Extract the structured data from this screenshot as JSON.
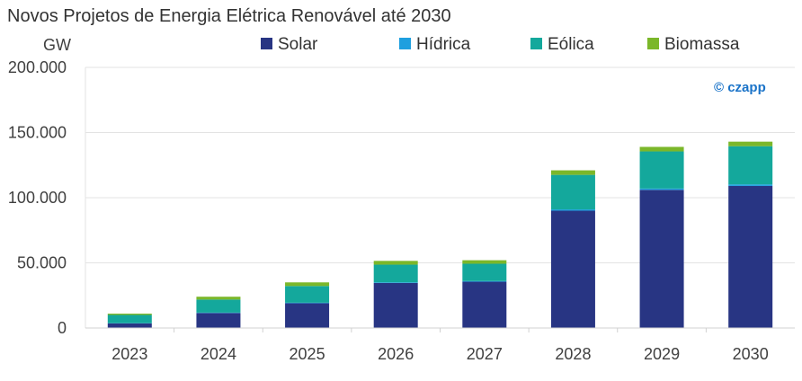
{
  "chart_data": {
    "type": "bar",
    "stacked": true,
    "title": "Novos Projetos de Energia Elétrica Renovável até 2030",
    "ylabel": "GW",
    "xlabel": "",
    "ylim": [
      0,
      200000
    ],
    "yticks": [
      0,
      50000,
      100000,
      150000,
      200000
    ],
    "ytick_labels": [
      "0",
      "50.000",
      "100.000",
      "150.000",
      "200.000"
    ],
    "grid": true,
    "legend_position": "top",
    "categories": [
      "2023",
      "2024",
      "2025",
      "2026",
      "2027",
      "2028",
      "2029",
      "2030"
    ],
    "series": [
      {
        "name": "Solar",
        "color": "#283583",
        "values": [
          3500,
          11500,
          19000,
          34500,
          35500,
          90000,
          106000,
          109000
        ]
      },
      {
        "name": "Hídrica",
        "color": "#1e9fdf",
        "values": [
          200,
          300,
          400,
          500,
          500,
          1000,
          1000,
          1200
        ]
      },
      {
        "name": "Eólica",
        "color": "#14a89c",
        "values": [
          6300,
          10000,
          12800,
          13600,
          13300,
          26500,
          28500,
          29300
        ]
      },
      {
        "name": "Biomassa",
        "color": "#7bb72a",
        "values": [
          1000,
          2200,
          2800,
          2900,
          2700,
          3500,
          3500,
          3500
        ]
      }
    ]
  },
  "watermark": {
    "text": "© czapp"
  }
}
